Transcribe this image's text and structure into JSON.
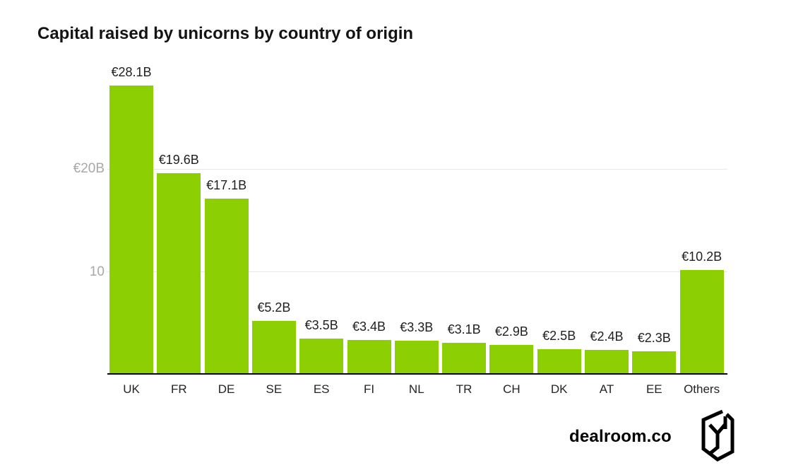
{
  "header": {
    "title": "Capital raised by unicorns by country of origin"
  },
  "chart_data": {
    "type": "bar",
    "title": "Capital raised by unicorns by country of origin",
    "xlabel": "",
    "ylabel": "",
    "categories": [
      "UK",
      "FR",
      "DE",
      "SE",
      "ES",
      "FI",
      "NL",
      "TR",
      "CH",
      "DK",
      "AT",
      "EE",
      "Others"
    ],
    "values": [
      28.1,
      19.6,
      17.1,
      5.2,
      3.5,
      3.4,
      3.3,
      3.1,
      2.9,
      2.5,
      2.4,
      2.3,
      10.2
    ],
    "value_labels": [
      "€28.1B",
      "€19.6B",
      "€17.1B",
      "€5.2B",
      "€3.5B",
      "€3.4B",
      "€3.3B",
      "€3.1B",
      "€2.9B",
      "€2.5B",
      "€2.4B",
      "€2.3B",
      "€10.2B"
    ],
    "ylim": [
      0,
      30
    ],
    "yticks": [
      {
        "value": 20,
        "label": "€20B"
      },
      {
        "value": 10,
        "label": "10"
      }
    ],
    "grid": "horizontal",
    "legend": "none",
    "bar_color": "#8CD003"
  },
  "footer": {
    "brand": "dealroom.co",
    "logo": "dealroom-monogram-icon"
  },
  "colors": {
    "bar": "#8CD003",
    "gridline": "#e7e7e7",
    "axis_line": "#0a0a0a",
    "title_text": "#141414",
    "value_label_text": "#1f1f1f",
    "y_tick_text": "#a8a8a8",
    "background": "#ffffff"
  }
}
